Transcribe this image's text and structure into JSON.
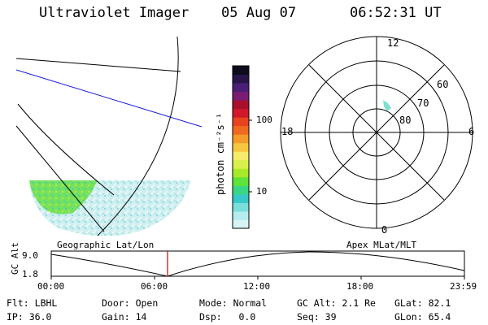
{
  "header": {
    "instrument": "Ultraviolet Imager",
    "date": "05 Aug 07",
    "time": "06:52:31 UT"
  },
  "colorbar": {
    "unit_label": "photon cm⁻²s⁻¹",
    "ticks": [
      "100",
      "10"
    ],
    "scale": "log",
    "colors": [
      "#d7f4f4",
      "#b5ecee",
      "#7adedb",
      "#37c8c8",
      "#39d782",
      "#5fe23a",
      "#a6ea2a",
      "#d9ef4a",
      "#f4ec6a",
      "#f6c73f",
      "#f49b2a",
      "#f06a1e",
      "#e8431f",
      "#d0182a",
      "#a8102b",
      "#7a1d72",
      "#4b1f78",
      "#28164a",
      "#0f0a1c"
    ]
  },
  "polar_plot": {
    "mlt_labels": {
      "top": "12",
      "left": "18",
      "right": "6",
      "bottom": "0"
    },
    "lat_labels": [
      "60",
      "70",
      "80"
    ],
    "caption": "Apex MLat/MLT"
  },
  "geo_panel": {
    "caption": "Geographic Lat/Lon"
  },
  "orbit_plot": {
    "ylabel": "GC Alt",
    "yticks": [
      "9.0",
      "1.8"
    ],
    "xticks": [
      "00:00",
      "06:00",
      "12:00",
      "18:00",
      "23:59"
    ],
    "marker_color": "#cc0000"
  },
  "status": {
    "row1": [
      {
        "label": "Flt:",
        "value": "LBHL"
      },
      {
        "label": "Door:",
        "value": "Open"
      },
      {
        "label": "Mode:",
        "value": "Normal"
      },
      {
        "label": "GC Alt:",
        "value": "2.1 Re"
      },
      {
        "label": "GLat:",
        "value": "82.1"
      }
    ],
    "row2": [
      {
        "label": "IP:",
        "value": "36.0"
      },
      {
        "label": "Gain:",
        "value": "14"
      },
      {
        "label": "Dsp:",
        "value": "0.0"
      },
      {
        "label": "Seq:",
        "value": "39"
      },
      {
        "label": "GLon:",
        "value": "65.4"
      }
    ]
  }
}
